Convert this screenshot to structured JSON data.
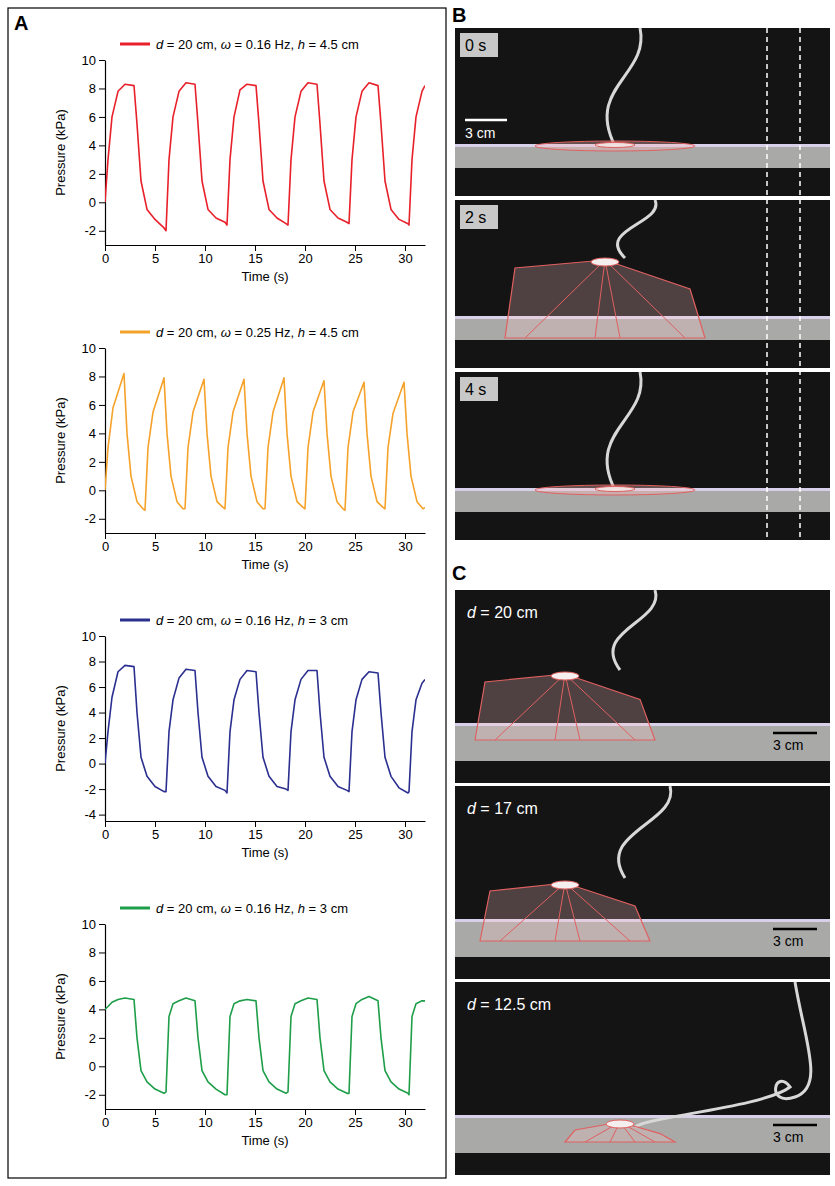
{
  "chart_data": [
    {
      "type": "line",
      "x_label": "Time (s)",
      "y_label": "Pressure (kPa)",
      "legend": "top",
      "xlim": [
        0,
        32
      ],
      "ylim": [
        -3,
        10
      ],
      "xticks": [
        0,
        5,
        10,
        15,
        20,
        25,
        30
      ],
      "yticks": [
        -2,
        0,
        2,
        4,
        6,
        8,
        10
      ],
      "x": [
        0,
        0.3,
        0.7,
        1.3,
        2.0,
        2.9,
        3.2,
        3.6,
        4.2,
        5.0,
        5.9,
        6.1,
        6.4,
        6.8,
        7.4,
        8.1,
        9.0,
        9.3,
        9.7,
        10.3,
        11.1,
        12.0,
        12.2,
        12.5,
        12.9,
        13.5,
        14.2,
        15.1,
        15.4,
        15.8,
        16.4,
        17.2,
        18.1,
        18.3,
        18.6,
        19.0,
        19.6,
        20.3,
        21.2,
        21.5,
        21.9,
        22.5,
        23.3,
        24.2,
        24.4,
        24.7,
        25.1,
        25.7,
        26.4,
        27.3,
        27.6,
        28.0,
        28.6,
        29.4,
        30.3,
        30.4,
        30.7,
        31.1,
        31.7,
        32.0
      ],
      "series": [
        {
          "name": "d = 20 cm, ω = 0.16 Hz, h = 4.5 cm",
          "color": "#e8202a",
          "values": [
            0,
            3,
            6,
            7.8,
            8.3,
            8.2,
            5.5,
            1.5,
            -0.5,
            -1.2,
            -1.8,
            -2,
            3,
            6,
            7.8,
            8.4,
            8.3,
            5.5,
            1.5,
            -0.5,
            -1.1,
            -1.4,
            -1.6,
            3,
            6,
            7.9,
            8.3,
            8.2,
            5.5,
            1.5,
            -0.5,
            -1.1,
            -1.5,
            -1.6,
            3,
            6,
            7.8,
            8.4,
            8.3,
            5.5,
            1.5,
            -0.5,
            -1.1,
            -1.4,
            -1.5,
            3,
            6,
            7.8,
            8.4,
            8.2,
            5.5,
            1.5,
            -0.5,
            -1.2,
            -1.5,
            -1.6,
            3,
            6,
            7.8,
            8.2
          ]
        }
      ]
    },
    {
      "type": "line",
      "x_label": "Time (s)",
      "y_label": "Pressure (kPa)",
      "legend": "top",
      "xlim": [
        0,
        32
      ],
      "ylim": [
        -3,
        10
      ],
      "xticks": [
        0,
        5,
        10,
        15,
        20,
        25,
        30
      ],
      "yticks": [
        -2,
        0,
        2,
        4,
        6,
        8,
        10
      ],
      "x": [
        0,
        0.3,
        0.8,
        1.9,
        2.2,
        2.6,
        3.2,
        3.8,
        4,
        4.3,
        4.8,
        5.9,
        6.2,
        6.6,
        7.2,
        7.8,
        8,
        8.3,
        8.8,
        9.9,
        10.2,
        10.6,
        11.2,
        11.8,
        12,
        12.3,
        12.8,
        13.9,
        14.2,
        14.6,
        15.2,
        15.8,
        16,
        16.3,
        16.8,
        17.9,
        18.2,
        18.6,
        19.2,
        19.8,
        20,
        20.3,
        20.8,
        21.9,
        22.2,
        22.6,
        23.2,
        23.8,
        24,
        24.3,
        24.8,
        25.9,
        26.2,
        26.6,
        27.2,
        27.8,
        28,
        28.3,
        28.8,
        29.9,
        30.2,
        30.6,
        31.2,
        31.8,
        32
      ],
      "series": [
        {
          "name": "d = 20 cm, ω = 0.25 Hz, h = 4.5 cm",
          "color": "#f5a22b",
          "values": [
            0,
            3,
            5.8,
            8.2,
            4,
            1,
            -0.8,
            -1.3,
            -1.4,
            3,
            5.5,
            7.9,
            4,
            1,
            -0.8,
            -1.3,
            -1.3,
            3,
            5.5,
            7.8,
            4,
            1,
            -0.8,
            -1.2,
            -1.3,
            3,
            5.5,
            7.8,
            4,
            1,
            -0.8,
            -1.3,
            -1.3,
            3,
            5.5,
            7.9,
            4,
            1,
            -0.8,
            -1.2,
            -1.3,
            3,
            5.5,
            7.7,
            4,
            1,
            -0.8,
            -1.3,
            -1.4,
            3,
            5.5,
            7.6,
            4,
            1,
            -0.8,
            -1.2,
            -1.3,
            3,
            5.4,
            7.6,
            4,
            1,
            -0.8,
            -1.3,
            -1.2
          ]
        }
      ]
    },
    {
      "type": "line",
      "x_label": "Time (s)",
      "y_label": "Pressure (kPa)",
      "legend": "top",
      "xlim": [
        0,
        32
      ],
      "ylim": [
        -4.5,
        10
      ],
      "xticks": [
        0,
        5,
        10,
        15,
        20,
        25,
        30
      ],
      "yticks": [
        -4,
        -2,
        0,
        2,
        4,
        6,
        8,
        10
      ],
      "x": [
        0,
        0.3,
        0.7,
        1.3,
        2.0,
        2.9,
        3.2,
        3.6,
        4.2,
        5.0,
        5.9,
        6.1,
        6.4,
        6.8,
        7.4,
        8.1,
        9.0,
        9.3,
        9.7,
        10.3,
        11.1,
        12.0,
        12.2,
        12.5,
        12.9,
        13.5,
        14.2,
        15.1,
        15.4,
        15.8,
        16.4,
        17.2,
        18.1,
        18.3,
        18.6,
        19.0,
        19.6,
        20.3,
        21.2,
        21.5,
        21.9,
        22.5,
        23.3,
        24.2,
        24.4,
        24.7,
        25.1,
        25.7,
        26.4,
        27.3,
        27.6,
        28.0,
        28.6,
        29.4,
        30.3,
        30.4,
        30.7,
        31.1,
        31.7,
        32.0
      ],
      "series": [
        {
          "name": "d = 20 cm, ω = 0.16 Hz, h = 3 cm",
          "color": "#2b2f8f",
          "values": [
            0,
            2.5,
            5.2,
            7.2,
            7.7,
            7.6,
            4,
            0.5,
            -1,
            -1.8,
            -2.2,
            -2.2,
            2.5,
            5,
            6.7,
            7.4,
            7.3,
            4,
            0.5,
            -1,
            -1.8,
            -2.1,
            -2.3,
            2.5,
            5,
            6.6,
            7.3,
            7.2,
            4,
            0.5,
            -1,
            -1.8,
            -2,
            -2.1,
            2.5,
            5,
            6.6,
            7.3,
            7.3,
            4,
            0.5,
            -1,
            -1.8,
            -2.1,
            -2.2,
            2.5,
            5,
            6.6,
            7.2,
            7.1,
            4,
            0.5,
            -1,
            -1.9,
            -2.3,
            -2.2,
            2.5,
            5,
            6.3,
            6.6
          ]
        }
      ]
    },
    {
      "type": "line",
      "x_label": "Time (s)",
      "y_label": "Pressure (kPa)",
      "legend": "top",
      "xlim": [
        0,
        32
      ],
      "ylim": [
        -3,
        10
      ],
      "xticks": [
        0,
        5,
        10,
        15,
        20,
        25,
        30
      ],
      "yticks": [
        -2,
        0,
        2,
        4,
        6,
        8,
        10
      ],
      "x": [
        0,
        0.3,
        0.7,
        1.3,
        2.0,
        2.9,
        3.2,
        3.6,
        4.2,
        5.0,
        5.9,
        6.1,
        6.4,
        6.8,
        7.4,
        8.1,
        9.0,
        9.3,
        9.7,
        10.3,
        11.1,
        12.0,
        12.2,
        12.5,
        12.9,
        13.5,
        14.2,
        15.1,
        15.4,
        15.8,
        16.4,
        17.2,
        18.1,
        18.3,
        18.6,
        19.0,
        19.6,
        20.3,
        21.2,
        21.5,
        21.9,
        22.5,
        23.3,
        24.2,
        24.4,
        24.7,
        25.1,
        25.7,
        26.4,
        27.3,
        27.6,
        28.0,
        28.6,
        29.4,
        30.3,
        30.4,
        30.7,
        31.1,
        31.7,
        32.0
      ],
      "series": [
        {
          "name": "d = 20 cm, ω = 0.16 Hz, h = 3 cm",
          "color": "#1f9e4a",
          "values": [
            4,
            4.2,
            4.5,
            4.7,
            4.8,
            4.7,
            2,
            -0.3,
            -1.1,
            -1.6,
            -1.9,
            -1.8,
            3.5,
            4.4,
            4.6,
            4.8,
            4.6,
            2,
            -0.3,
            -1.1,
            -1.6,
            -2,
            -2,
            3.5,
            4.4,
            4.6,
            4.7,
            4.6,
            2,
            -0.3,
            -1.1,
            -1.6,
            -1.9,
            -1.8,
            3.5,
            4.4,
            4.6,
            4.8,
            4.7,
            2,
            -0.3,
            -1.1,
            -1.6,
            -1.9,
            -1.9,
            3.5,
            4.4,
            4.7,
            4.9,
            4.6,
            2,
            -0.3,
            -1.1,
            -1.6,
            -1.9,
            -2,
            3.5,
            4.4,
            4.6,
            4.6
          ]
        }
      ]
    }
  ],
  "panel_letters": [
    "A",
    "B",
    "C"
  ],
  "photos": {
    "B": {
      "frames": [
        {
          "label": "0 s",
          "scale_bar": "3 cm"
        },
        {
          "label": "2 s"
        },
        {
          "label": "4 s"
        }
      ]
    },
    "C": {
      "frames": [
        {
          "label": "d = 20 cm",
          "scale_bar": "3 cm"
        },
        {
          "label": "d = 17 cm",
          "scale_bar": "3 cm"
        },
        {
          "label": "d = 12.5 cm",
          "scale_bar": "3 cm"
        }
      ]
    }
  }
}
